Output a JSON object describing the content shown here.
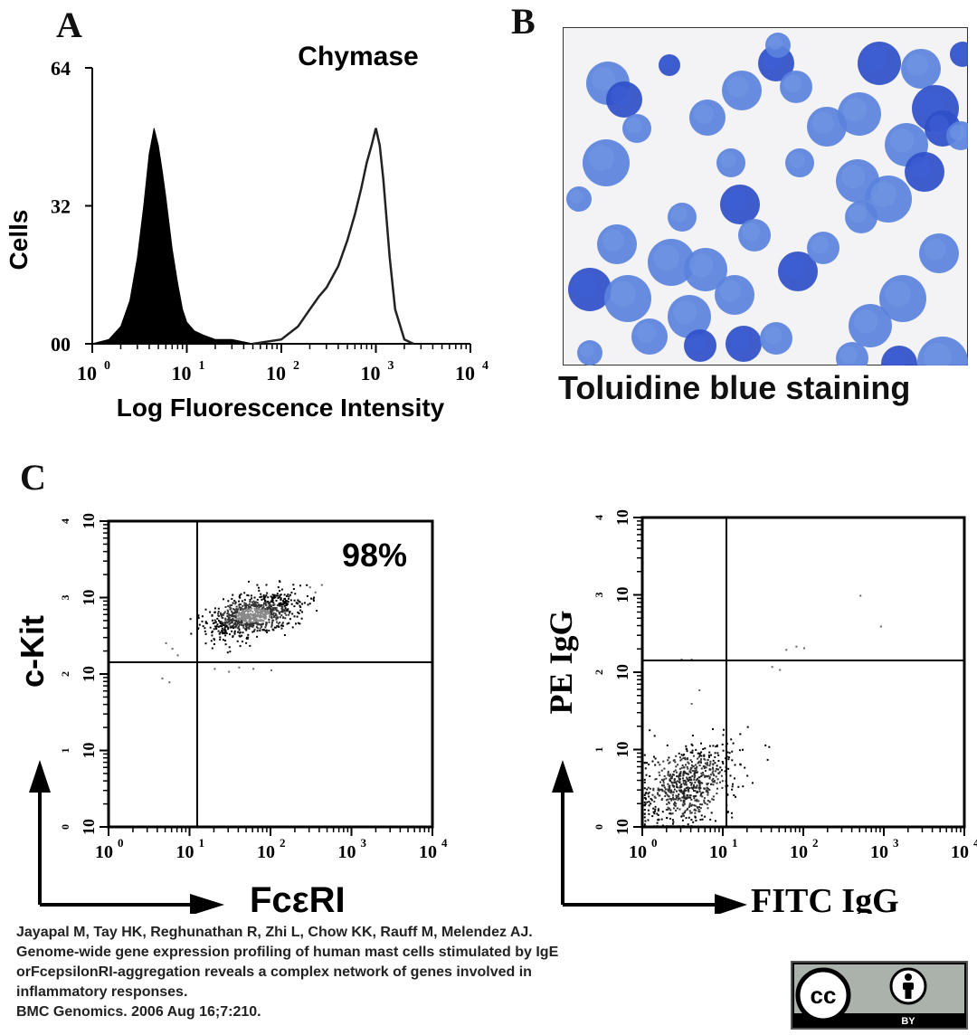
{
  "panels": {
    "a": {
      "letter": "A",
      "title": "Chymase",
      "ylabel": "Cells",
      "yticks": [
        "64",
        "32",
        "00"
      ],
      "xlabel": "Log Fluorescence Intensity",
      "xticks": [
        "10",
        "10",
        "10",
        "10",
        "10"
      ],
      "xtick_exps": [
        "0",
        "1",
        "2",
        "3",
        "4"
      ]
    },
    "b": {
      "letter": "B",
      "caption": "Toluidine blue staining"
    },
    "c": {
      "letter": "C",
      "left": {
        "ylabel": "c-Kit",
        "xlabel": "FcεRI",
        "percent": "98%",
        "ticks": [
          "10",
          "10",
          "10",
          "10",
          "10"
        ],
        "tick_exps": [
          "0",
          "1",
          "2",
          "3",
          "4"
        ]
      },
      "right": {
        "ylabel": "PE IgG",
        "xlabel": "FITC IgG",
        "ticks": [
          "10",
          "10",
          "10",
          "10",
          "10"
        ],
        "tick_exps": [
          "0",
          "1",
          "2",
          "3",
          "4"
        ]
      }
    }
  },
  "citation": {
    "lines": [
      "Jayapal M, Tay HK, Reghunathan R, Zhi L, Chow KK, Rauff M, Melendez AJ.",
      "Genome-wide gene expression profiling of human mast cells stimulated by IgE",
      "orFcepsilonRI-aggregation reveals a complex network of genes involved in",
      "inflammatory responses.",
      "BMC Genomics. 2006 Aug 16;7:210."
    ]
  },
  "license": {
    "cc": "cc",
    "by": "BY",
    "icons": [
      "creative-commons-icon",
      "attribution-person-icon"
    ]
  },
  "chart_data": [
    {
      "type": "area",
      "title": "Chymase",
      "xlabel": "Log Fluorescence Intensity",
      "ylabel": "Cells",
      "x_scale": "log",
      "xlim": [
        1,
        10000
      ],
      "ylim": [
        0,
        64
      ],
      "series": [
        {
          "style": "filled-black",
          "x": [
            1,
            1.5,
            2,
            2.5,
            3,
            3.5,
            4,
            4.5,
            5,
            5.5,
            6,
            7,
            8,
            9,
            10,
            12,
            15,
            20,
            30,
            50
          ],
          "y": [
            0,
            1,
            4,
            10,
            20,
            32,
            44,
            50,
            46,
            40,
            34,
            22,
            14,
            8,
            5,
            3,
            2,
            1,
            1,
            0
          ]
        },
        {
          "style": "open-outline",
          "x": [
            50,
            100,
            150,
            200,
            250,
            300,
            400,
            500,
            600,
            700,
            800,
            900,
            1000,
            1100,
            1200,
            1400,
            1600,
            2000,
            2500
          ],
          "y": [
            0,
            1,
            4,
            8,
            11,
            13,
            18,
            24,
            30,
            36,
            42,
            46,
            50,
            46,
            38,
            20,
            8,
            1,
            0
          ]
        }
      ]
    },
    {
      "type": "scatter",
      "xlabel": "FcεRI",
      "ylabel": "c-Kit",
      "x_scale": "log",
      "y_scale": "log",
      "xlim": [
        1,
        10000
      ],
      "ylim": [
        1,
        10000
      ],
      "gates": {
        "x": 12,
        "y": 150
      },
      "annotation": "98%",
      "cluster": {
        "center": [
          60,
          600
        ],
        "spread_decades": [
          0.28,
          0.12
        ]
      }
    },
    {
      "type": "scatter",
      "xlabel": "FITC IgG",
      "ylabel": "PE IgG",
      "x_scale": "log",
      "y_scale": "log",
      "xlim": [
        1,
        10000
      ],
      "ylim": [
        1,
        10000
      ],
      "gates": {
        "x": 10,
        "y": 150
      },
      "cluster": {
        "center": [
          3.5,
          3.5
        ],
        "spread_decades": [
          0.3,
          0.25
        ]
      }
    }
  ]
}
